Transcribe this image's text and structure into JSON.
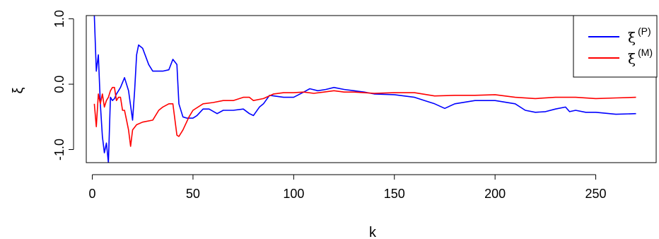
{
  "chart_data": {
    "type": "line",
    "title": "",
    "xlabel": "k",
    "ylabel": "ξ",
    "xlim": [
      -3,
      280
    ],
    "ylim": [
      -1.2,
      1.05
    ],
    "x_ticks": [
      0,
      50,
      100,
      150,
      200,
      250
    ],
    "x_tick_labels": [
      "0",
      "50",
      "100",
      "150",
      "200",
      "250"
    ],
    "y_ticks": [
      -1.0,
      0.0,
      1.0
    ],
    "y_tick_labels": [
      "-1.0",
      "0.0",
      "1.0"
    ],
    "grid": false,
    "legend_position": "top-right",
    "series": [
      {
        "name": "ξ(P)",
        "legend_base": "ξ",
        "legend_sup": "(P)",
        "color": "#0000ff",
        "x": [
          1,
          2,
          3,
          4,
          5,
          6,
          7,
          8,
          9,
          10,
          11,
          12,
          13,
          14,
          16,
          18,
          20,
          21,
          22,
          23,
          25,
          28,
          30,
          35,
          38,
          40,
          42,
          43,
          45,
          47,
          50,
          52,
          55,
          58,
          62,
          65,
          70,
          75,
          78,
          80,
          83,
          85,
          88,
          95,
          100,
          105,
          108,
          112,
          116,
          120,
          125,
          130,
          135,
          140,
          150,
          160,
          165,
          170,
          175,
          180,
          190,
          200,
          210,
          215,
          220,
          225,
          230,
          235,
          237,
          240,
          245,
          250,
          260,
          270
        ],
        "values": [
          1.05,
          0.2,
          0.45,
          -0.3,
          -0.8,
          -1.05,
          -0.9,
          -1.2,
          -0.2,
          -0.25,
          -0.22,
          -0.15,
          -0.1,
          -0.05,
          0.1,
          -0.1,
          -0.55,
          -0.1,
          0.45,
          0.6,
          0.55,
          0.3,
          0.2,
          0.2,
          0.22,
          0.38,
          0.3,
          -0.3,
          -0.5,
          -0.52,
          -0.52,
          -0.48,
          -0.38,
          -0.38,
          -0.45,
          -0.4,
          -0.4,
          -0.38,
          -0.45,
          -0.48,
          -0.35,
          -0.3,
          -0.17,
          -0.2,
          -0.2,
          -0.12,
          -0.07,
          -0.1,
          -0.08,
          -0.05,
          -0.08,
          -0.1,
          -0.12,
          -0.15,
          -0.16,
          -0.2,
          -0.25,
          -0.3,
          -0.37,
          -0.3,
          -0.25,
          -0.25,
          -0.3,
          -0.4,
          -0.43,
          -0.42,
          -0.38,
          -0.35,
          -0.42,
          -0.4,
          -0.43,
          -0.43,
          -0.46,
          -0.45
        ]
      },
      {
        "name": "ξ(M)",
        "legend_base": "ξ",
        "legend_sup": "(M)",
        "color": "#ff0000",
        "x": [
          1,
          2,
          3,
          4,
          5,
          6,
          7,
          8,
          9,
          10,
          11,
          12,
          13,
          14,
          15,
          16,
          17,
          18,
          19,
          20,
          22,
          25,
          30,
          33,
          35,
          38,
          40,
          42,
          43,
          45,
          48,
          50,
          55,
          60,
          65,
          70,
          75,
          78,
          80,
          85,
          90,
          95,
          100,
          105,
          110,
          115,
          120,
          125,
          130,
          135,
          140,
          150,
          160,
          170,
          180,
          190,
          200,
          210,
          220,
          230,
          240,
          250,
          260,
          270
        ],
        "values": [
          -0.3,
          -0.65,
          -0.15,
          -0.3,
          -0.15,
          -0.35,
          -0.25,
          -0.2,
          -0.1,
          -0.05,
          -0.05,
          -0.25,
          -0.2,
          -0.2,
          -0.4,
          -0.4,
          -0.55,
          -0.7,
          -0.95,
          -0.7,
          -0.62,
          -0.58,
          -0.55,
          -0.4,
          -0.35,
          -0.3,
          -0.3,
          -0.78,
          -0.8,
          -0.7,
          -0.5,
          -0.4,
          -0.3,
          -0.28,
          -0.25,
          -0.25,
          -0.2,
          -0.2,
          -0.25,
          -0.22,
          -0.15,
          -0.13,
          -0.13,
          -0.12,
          -0.14,
          -0.12,
          -0.1,
          -0.12,
          -0.12,
          -0.13,
          -0.14,
          -0.13,
          -0.13,
          -0.18,
          -0.17,
          -0.17,
          -0.16,
          -0.2,
          -0.22,
          -0.2,
          -0.2,
          -0.22,
          -0.21,
          -0.2
        ]
      }
    ]
  }
}
